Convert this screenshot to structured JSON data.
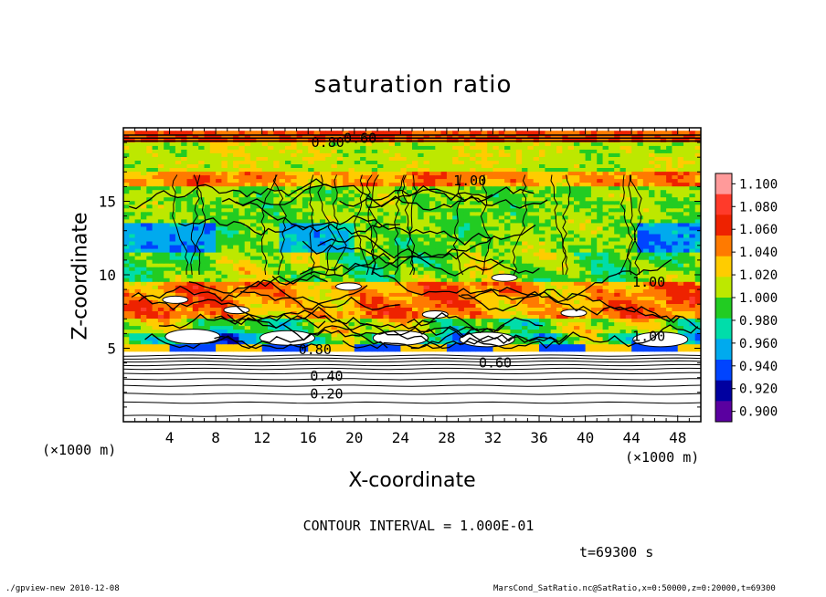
{
  "chart_data": {
    "type": "heatmap",
    "title": "saturation ratio",
    "xlabel": "X-coordinate",
    "ylabel": "Z-coordinate",
    "x_unit": "(×1000 m)",
    "xlim": [
      0,
      50
    ],
    "ylim": [
      0,
      20
    ],
    "x_ticks": [
      4,
      8,
      12,
      16,
      20,
      24,
      28,
      32,
      36,
      40,
      44,
      48
    ],
    "y_ticks": [
      5,
      10,
      15
    ],
    "colorbar": {
      "levels": [
        "1.100",
        "1.080",
        "1.060",
        "1.040",
        "1.020",
        "1.000",
        "0.980",
        "0.960",
        "0.940",
        "0.920",
        "0.900"
      ],
      "colors": [
        "#ff9a9a",
        "#ff3a2a",
        "#ee2200",
        "#ff7a00",
        "#ffcc00",
        "#bde800",
        "#22cc22",
        "#00ddaa",
        "#00aaee",
        "#0044ff",
        "#0000a0",
        "#5a00a0"
      ]
    },
    "contour_labels": [
      {
        "text": "0.60",
        "x": 20.5,
        "z": 19.3
      },
      {
        "text": "0.80",
        "x": 17.7,
        "z": 19.0
      },
      {
        "text": "1.00",
        "x": 30.0,
        "z": 16.4
      },
      {
        "text": "1.00",
        "x": 45.5,
        "z": 9.5
      },
      {
        "text": "1.00",
        "x": 45.5,
        "z": 5.8
      },
      {
        "text": "0.80",
        "x": 16.6,
        "z": 4.9
      },
      {
        "text": "0.60",
        "x": 32.2,
        "z": 4.0
      },
      {
        "text": "0.40",
        "x": 17.6,
        "z": 3.1
      },
      {
        "text": "0.20",
        "x": 17.6,
        "z": 1.9
      }
    ]
  },
  "annotations": {
    "contour_interval": "CONTOUR INTERVAL = 1.000E-01",
    "time": "t=69300 s",
    "footer_left": "./gpview-new   2010-12-08",
    "footer_right": "MarsCond_SatRatio.nc@SatRatio,x=0:50000,z=0:20000,t=69300"
  }
}
